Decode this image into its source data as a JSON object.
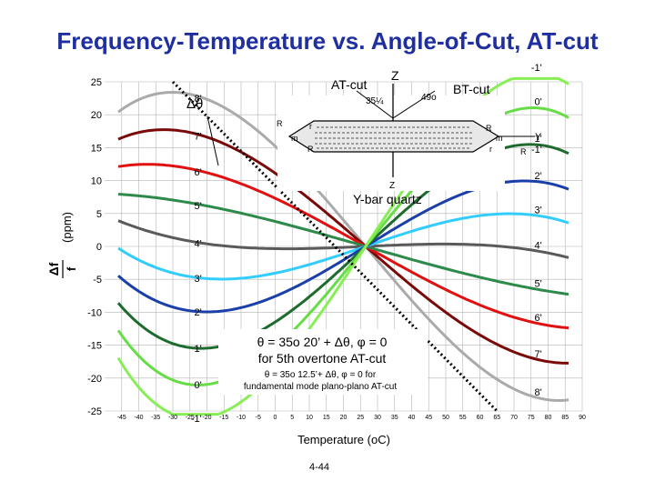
{
  "title": "Frequency-Temperature vs. Angle-of-Cut, AT-cut",
  "footer": "4-44",
  "chart_data": {
    "type": "line",
    "title": "Frequency-Temperature vs. Angle-of-Cut, AT-cut",
    "xlabel": "Temperature (oC)",
    "ylabel": "Δf / f (ppm)",
    "ylabel_main": "(ppm)",
    "ylabel_frac_num": "Δf",
    "ylabel_frac_den": "f",
    "xlim": [
      -50,
      90
    ],
    "ylim": [
      -25,
      25
    ],
    "grid": true,
    "x_ticks": [
      -45,
      -40,
      -35,
      -30,
      -25,
      -20,
      -15,
      -10,
      -5,
      0,
      5,
      10,
      15,
      20,
      25,
      30,
      35,
      40,
      45,
      50,
      55,
      60,
      65,
      70,
      75,
      80,
      85,
      90
    ],
    "y_ticks": [
      -25,
      -20,
      -15,
      -10,
      -5,
      0,
      5,
      10,
      15,
      20,
      25
    ],
    "inflection_temp": 26.5,
    "series": [
      {
        "left_label": "8'",
        "right_label": "8'",
        "color": "#aaaaaa",
        "values_at": {
          "-45": 20.8,
          "26.5": 0,
          "80": -23.3
        }
      },
      {
        "left_label": "7'",
        "right_label": "7'",
        "color": "#7a0a0a",
        "values_at": {
          "-45": 16.5,
          "26.5": 0,
          "80": -17.5
        }
      },
      {
        "left_label": "6'",
        "right_label": "6'",
        "color": "#e01010",
        "values_at": {
          "-45": 12.2,
          "26.5": 0,
          "80": -12.0
        }
      },
      {
        "left_label": "5'",
        "right_label": "5'",
        "color": "#2e8a4a",
        "values_at": {
          "-45": 7.9,
          "26.5": 0,
          "80": -6.8
        }
      },
      {
        "left_label": "4'",
        "right_label": "4'",
        "color": "#5a5a5a",
        "values_at": {
          "-45": 3.7,
          "26.5": 0,
          "80": -1.0
        }
      },
      {
        "left_label": "3'",
        "right_label": "3'",
        "color": "#33ccff",
        "values_at": {
          "-45": -0.6,
          "26.5": 0,
          "80": 4.4
        }
      },
      {
        "left_label": "2'",
        "right_label": "2'",
        "color": "#1a3fa8",
        "values_at": {
          "-45": -4.9,
          "26.5": 0,
          "80": 9.6
        }
      },
      {
        "left_label": "1'",
        "right_label": "1'",
        "color": "#1e6b2e",
        "values_at": {
          "-45": -9.2,
          "26.5": 0,
          "80": 15.2
        }
      },
      {
        "left_label": "0'",
        "right_label": "0'",
        "color": "#66dd44",
        "values_at": {
          "-45": -13.5,
          "26.5": 0,
          "80": 20.8
        }
      },
      {
        "left_label": "-1'",
        "right_label": "-1'",
        "color": "#88ee55",
        "values_at": {
          "-45": -17.8,
          "26.5": 0,
          "80": 26.0
        }
      }
    ],
    "dotted_series": {
      "style": "dotted",
      "color": "#000000",
      "from": [
        -30,
        25
      ],
      "to": [
        65,
        -25
      ]
    }
  },
  "annotations": {
    "delta_theta": "Δθ",
    "main_formula": "θ = 35o 20’ + Δθ, φ = 0",
    "main_formula_sub": "for 5th overtone AT-cut",
    "fund_formula": "θ = 35o 12.5’+ Δθ, φ = 0 for",
    "fund_formula_sub": "fundamental mode plano-plano AT-cut"
  },
  "crystal": {
    "at_cut": "AT-cut",
    "bt_cut": "BT-cut",
    "z_top": "Z",
    "z_bottom": "Z",
    "angle_at": "35¼",
    "angle_bt": "49o",
    "y_axis": "Y",
    "y_neg": "-1'",
    "caption": "Y-bar quartz",
    "labels": [
      "R",
      "r",
      "m",
      "R",
      "R",
      "m",
      "r",
      "R"
    ]
  }
}
